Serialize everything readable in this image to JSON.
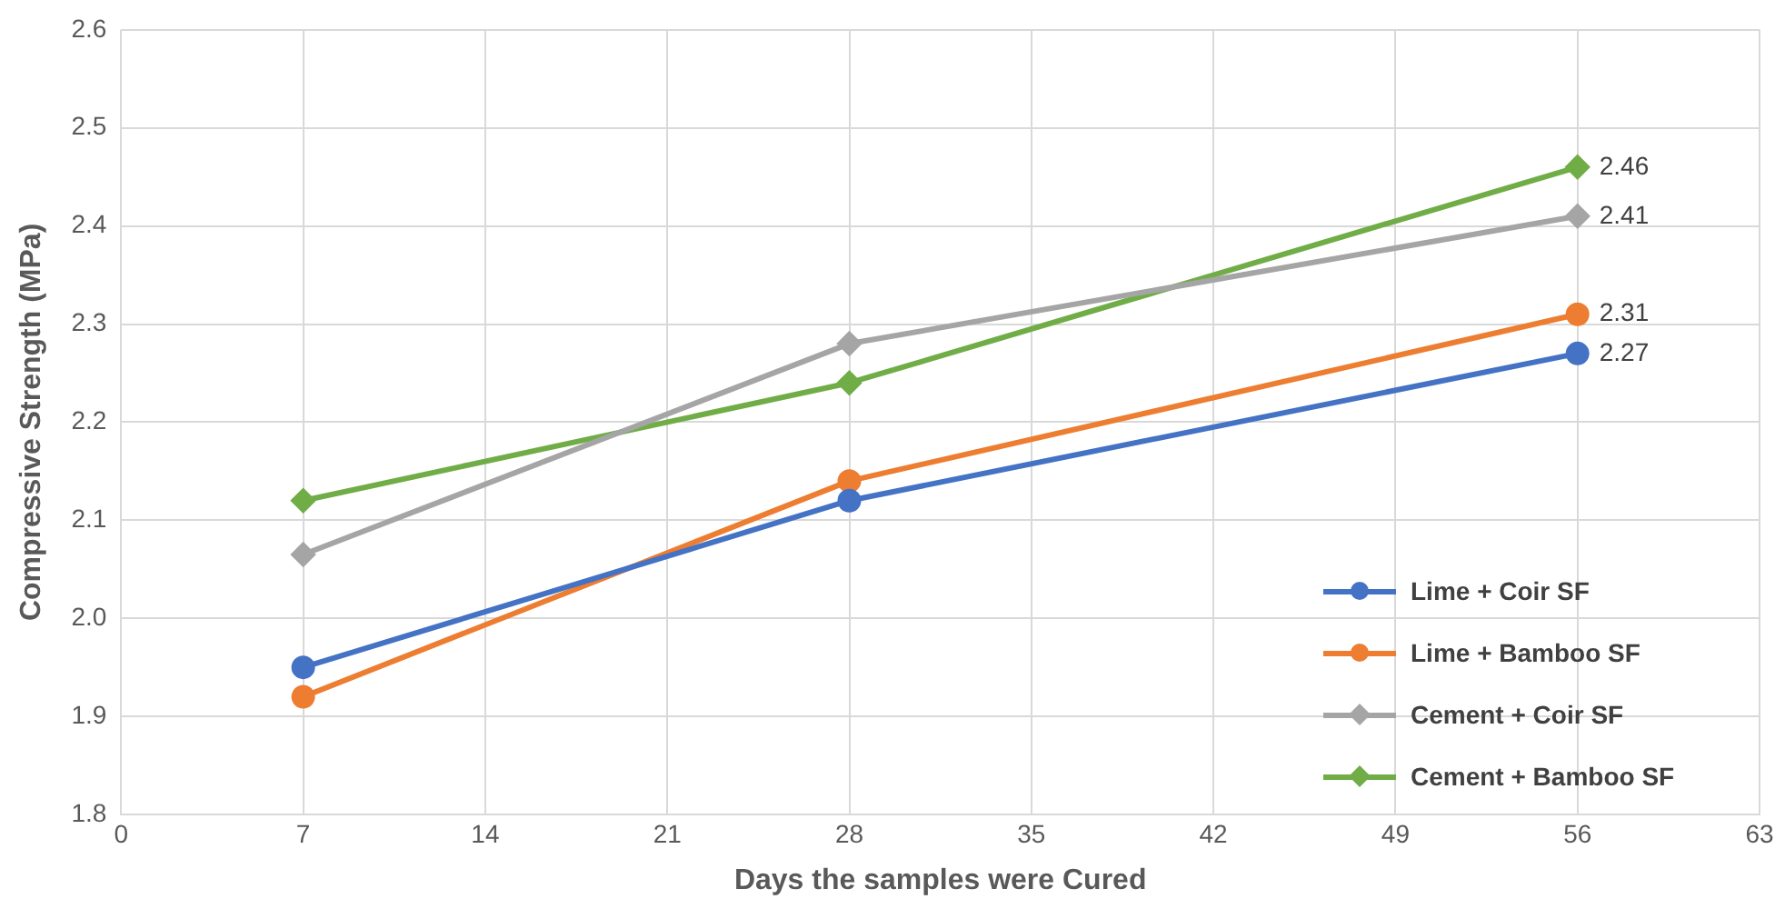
{
  "chart_data": {
    "type": "line",
    "xlabel": "Days the samples were Cured",
    "ylabel": "Compressive Strength (MPa)",
    "x": [
      7,
      28,
      56
    ],
    "xlim": [
      0,
      63
    ],
    "xticks": [
      0,
      7,
      14,
      21,
      28,
      35,
      42,
      49,
      56,
      63
    ],
    "ylim": [
      1.8,
      2.6
    ],
    "yticks": [
      1.8,
      1.9,
      {
        "value": 2,
        "label": "2.0"
      },
      2.1,
      2.2,
      2.3,
      2.4,
      2.5,
      2.6
    ],
    "grid": true,
    "legend": "bottom right",
    "line_style": "solid",
    "series": [
      {
        "name": "Lime + Coir SF",
        "color": "#4472c4",
        "marker": "circle",
        "values": [
          1.95,
          2.12,
          2.27
        ],
        "value_labels": [
          null,
          null,
          "2.27"
        ]
      },
      {
        "name": "Lime + Bamboo SF",
        "color": "#ed7d31",
        "marker": "circle",
        "values": [
          1.92,
          2.14,
          2.31
        ],
        "value_labels": [
          null,
          null,
          "2.31"
        ]
      },
      {
        "name": "Cement + Coir SF",
        "color": "#a5a5a5",
        "marker": "diamond",
        "values": [
          2.065,
          2.28,
          2.41
        ],
        "value_labels": [
          null,
          null,
          "2.41"
        ]
      },
      {
        "name": "Cement + Bamboo SF",
        "color": "#70ad47",
        "marker": "diamond",
        "values": [
          2.12,
          2.24,
          2.46
        ],
        "value_labels": [
          null,
          null,
          "2.46"
        ]
      }
    ]
  }
}
